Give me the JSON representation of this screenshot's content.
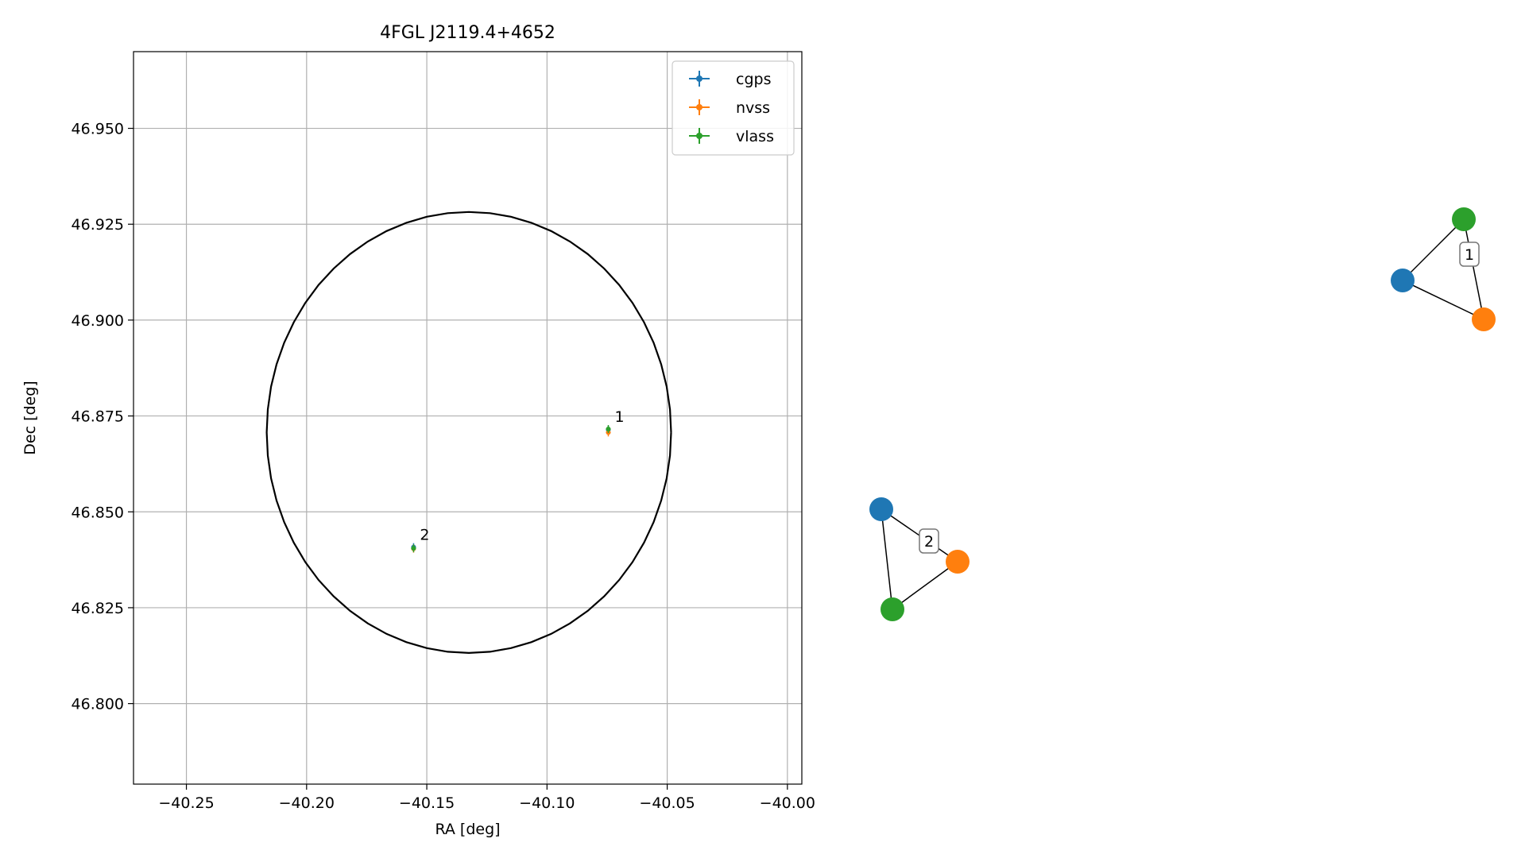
{
  "chart_data": [
    {
      "type": "scatter",
      "title": "4FGL J2119.4+4652",
      "xlabel": "RA [deg]",
      "ylabel": "Dec [deg]",
      "xlim": [
        -40.272,
        -39.994
      ],
      "ylim": [
        46.779,
        46.97
      ],
      "x_ticks": [
        -40.25,
        -40.2,
        -40.15,
        -40.1,
        -40.05,
        -40.0
      ],
      "x_tick_labels": [
        "−40.25",
        "−40.20",
        "−40.15",
        "−40.10",
        "−40.05",
        "−40.00"
      ],
      "y_ticks": [
        46.8,
        46.825,
        46.85,
        46.875,
        46.9,
        46.925,
        46.95
      ],
      "y_tick_labels": [
        "46.800",
        "46.825",
        "46.850",
        "46.875",
        "46.900",
        "46.925",
        "46.950"
      ],
      "grid": true,
      "legend": {
        "placement": "upper right",
        "entries": [
          "cgps",
          "nvss",
          "vlass"
        ]
      },
      "circle": {
        "center": [
          -40.1325,
          46.8707
        ],
        "radius_deg": 0.0575,
        "color": "#000000"
      },
      "series": [
        {
          "name": "cgps",
          "color": "#1f77b4",
          "points": [
            [
              -40.0745,
              46.8714
            ],
            [
              -40.1555,
              46.8408
            ]
          ]
        },
        {
          "name": "nvss",
          "color": "#ff7f0e",
          "points": [
            [
              -40.0745,
              46.8707
            ],
            [
              -40.1555,
              46.8404
            ]
          ]
        },
        {
          "name": "vlass",
          "color": "#2ca02c",
          "points": [
            [
              -40.0745,
              46.8716
            ],
            [
              -40.1555,
              46.8405
            ]
          ]
        }
      ],
      "annotations": [
        {
          "text": "1",
          "x": -40.0745,
          "y": 46.8716
        },
        {
          "text": "2",
          "x": -40.1555,
          "y": 46.8408
        }
      ]
    },
    {
      "type": "graph",
      "clusters": [
        {
          "label": "1",
          "nodes": [
            {
              "name": "cgps",
              "color": "#1f77b4"
            },
            {
              "name": "nvss",
              "color": "#ff7f0e"
            },
            {
              "name": "vlass",
              "color": "#2ca02c"
            }
          ],
          "edges": [
            [
              "cgps",
              "vlass"
            ],
            [
              "cgps",
              "nvss"
            ],
            [
              "nvss",
              "vlass"
            ]
          ]
        },
        {
          "label": "2",
          "nodes": [
            {
              "name": "cgps",
              "color": "#1f77b4"
            },
            {
              "name": "nvss",
              "color": "#ff7f0e"
            },
            {
              "name": "vlass",
              "color": "#2ca02c"
            }
          ],
          "edges": [
            [
              "cgps",
              "nvss"
            ],
            [
              "cgps",
              "vlass"
            ],
            [
              "nvss",
              "vlass"
            ]
          ]
        }
      ]
    }
  ]
}
